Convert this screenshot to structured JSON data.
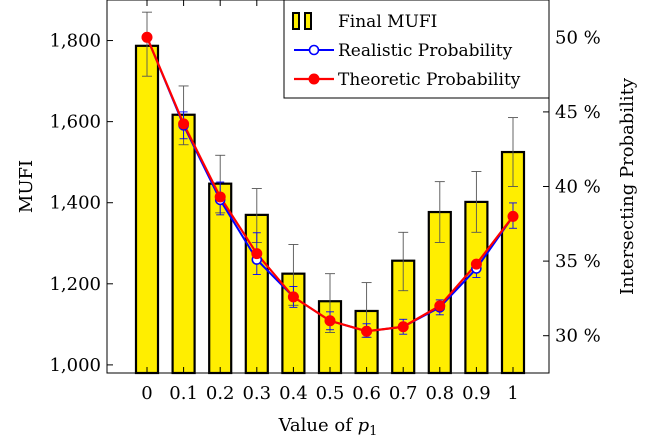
{
  "chart_data": {
    "type": "bar",
    "categories": [
      "0",
      "0.1",
      "0.2",
      "0.3",
      "0.4",
      "0.5",
      "0.6",
      "0.7",
      "0.8",
      "0.9",
      "1"
    ],
    "xlabel": "Value of p1",
    "xlabel_main": "Value of ",
    "xlabel_var": "p",
    "xlabel_sub": "1",
    "ylabel_left": "MUFI",
    "ylabel_right": "Intersecting Probability",
    "ylim_left": [
      980,
      1900
    ],
    "yticks_left": [
      1000,
      1200,
      1400,
      1600,
      1800
    ],
    "yticklabels_left": [
      "1,000",
      "1,200",
      "1,400",
      "1,600",
      "1,800"
    ],
    "ylim_right": [
      27.5,
      52.5
    ],
    "yticks_right": [
      30,
      35,
      40,
      45,
      50
    ],
    "yticklabels_right": [
      "30 %",
      "35 %",
      "40 %",
      "45 %",
      "50 %"
    ],
    "legend_position": "top-right",
    "bars": {
      "name": "Final MUFI",
      "color": "#ffee00",
      "values": [
        1787,
        1617,
        1447,
        1370,
        1225,
        1157,
        1133,
        1257,
        1377,
        1402,
        1525
      ],
      "err_high": [
        1870,
        1688,
        1517,
        1435,
        1297,
        1225,
        1203,
        1327,
        1452,
        1477,
        1610
      ],
      "err_low": [
        1712,
        1543,
        1375,
        1302,
        1147,
        1080,
        1068,
        1183,
        1302,
        1327,
        1440
      ]
    },
    "series": [
      {
        "name": "Realistic Probability",
        "color": "#0000ff",
        "marker": "open-circle",
        "values": [
          50.0,
          44.1,
          39.1,
          35.1,
          32.6,
          31.0,
          30.3,
          30.6,
          31.9,
          34.5,
          38.0
        ],
        "err_high": [
          50.0,
          45.0,
          40.3,
          36.9,
          33.3,
          31.6,
          30.8,
          31.1,
          32.4,
          35.0,
          38.9
        ],
        "err_low": [
          50.0,
          43.2,
          38.1,
          34.1,
          31.9,
          30.4,
          29.9,
          30.1,
          31.4,
          33.9,
          37.2
        ]
      },
      {
        "name": "Theoretic Probability",
        "color": "#ff0000",
        "marker": "filled-circle",
        "values": [
          50.0,
          44.2,
          39.3,
          35.5,
          32.6,
          31.0,
          30.3,
          30.6,
          32.0,
          34.8,
          38.0
        ]
      }
    ]
  }
}
